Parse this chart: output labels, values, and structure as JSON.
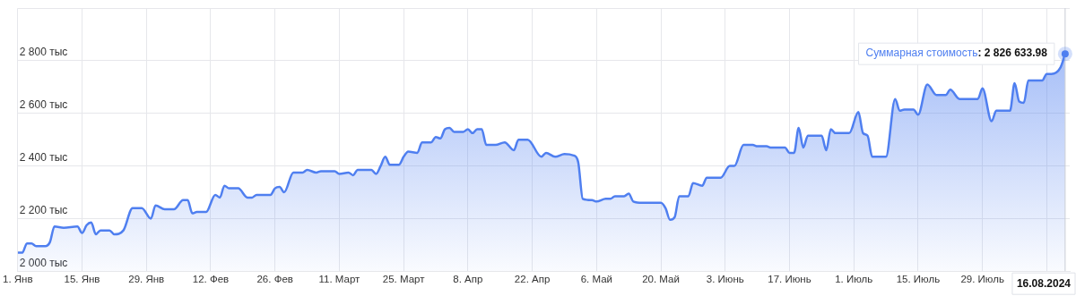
{
  "chart_data": {
    "type": "area",
    "x": [
      "2024-01-01",
      "2024-01-02",
      "2024-01-03",
      "2024-01-04",
      "2024-01-05",
      "2024-01-07",
      "2024-01-08",
      "2024-01-09",
      "2024-01-11",
      "2024-01-14",
      "2024-01-15",
      "2024-01-16",
      "2024-01-17",
      "2024-01-18",
      "2024-01-19",
      "2024-01-21",
      "2024-01-22",
      "2024-01-24",
      "2024-01-26",
      "2024-01-28",
      "2024-01-30",
      "2024-01-31",
      "2024-02-02",
      "2024-02-04",
      "2024-02-06",
      "2024-02-07",
      "2024-02-08",
      "2024-02-09",
      "2024-02-11",
      "2024-02-13",
      "2024-02-14",
      "2024-02-15",
      "2024-02-16",
      "2024-02-18",
      "2024-02-20",
      "2024-02-21",
      "2024-02-22",
      "2024-02-25",
      "2024-02-26",
      "2024-02-27",
      "2024-02-28",
      "2024-03-01",
      "2024-03-03",
      "2024-03-04",
      "2024-03-06",
      "2024-03-07",
      "2024-03-10",
      "2024-03-11",
      "2024-03-13",
      "2024-03-14",
      "2024-03-15",
      "2024-03-18",
      "2024-03-19",
      "2024-03-20",
      "2024-03-21",
      "2024-03-22",
      "2024-03-24",
      "2024-03-25",
      "2024-03-26",
      "2024-03-28",
      "2024-03-29",
      "2024-03-31",
      "2024-04-01",
      "2024-04-02",
      "2024-04-03",
      "2024-04-04",
      "2024-04-05",
      "2024-04-07",
      "2024-04-08",
      "2024-04-09",
      "2024-04-10",
      "2024-04-11",
      "2024-04-12",
      "2024-04-14",
      "2024-04-16",
      "2024-04-18",
      "2024-04-19",
      "2024-04-21",
      "2024-04-24",
      "2024-04-25",
      "2024-04-27",
      "2024-04-29",
      "2024-05-01",
      "2024-05-02",
      "2024-05-03",
      "2024-05-05",
      "2024-05-06",
      "2024-05-08",
      "2024-05-09",
      "2024-05-10",
      "2024-05-12",
      "2024-05-13",
      "2024-05-14",
      "2024-05-16",
      "2024-05-20",
      "2024-05-21",
      "2024-05-22",
      "2024-05-23",
      "2024-05-24",
      "2024-05-26",
      "2024-05-27",
      "2024-05-29",
      "2024-05-30",
      "2024-06-02",
      "2024-06-04",
      "2024-06-05",
      "2024-06-07",
      "2024-06-09",
      "2024-06-10",
      "2024-06-12",
      "2024-06-13",
      "2024-06-16",
      "2024-06-17",
      "2024-06-18",
      "2024-06-19",
      "2024-06-20",
      "2024-06-21",
      "2024-06-24",
      "2024-06-25",
      "2024-06-26",
      "2024-06-27",
      "2024-06-30",
      "2024-07-02",
      "2024-07-03",
      "2024-07-04",
      "2024-07-05",
      "2024-07-08",
      "2024-07-10",
      "2024-07-11",
      "2024-07-12",
      "2024-07-14",
      "2024-07-15",
      "2024-07-17",
      "2024-07-19",
      "2024-07-21",
      "2024-07-22",
      "2024-07-24",
      "2024-07-28",
      "2024-07-29",
      "2024-07-31",
      "2024-08-01",
      "2024-08-04",
      "2024-08-05",
      "2024-08-06",
      "2024-08-07",
      "2024-08-08",
      "2024-08-11",
      "2024-08-12",
      "2024-08-13",
      "2024-08-15",
      "2024-08-16"
    ],
    "series": [
      {
        "color": "#4f7ff0",
        "values": [
          2070,
          2070,
          2105,
          2105,
          2095,
          2095,
          2110,
          2170,
          2165,
          2170,
          2145,
          2175,
          2185,
          2140,
          2155,
          2155,
          2140,
          2155,
          2240,
          2240,
          2200,
          2250,
          2235,
          2235,
          2270,
          2270,
          2220,
          2225,
          2225,
          2290,
          2280,
          2325,
          2315,
          2315,
          2280,
          2280,
          2290,
          2290,
          2315,
          2320,
          2300,
          2375,
          2375,
          2385,
          2375,
          2380,
          2380,
          2370,
          2375,
          2365,
          2385,
          2385,
          2370,
          2400,
          2435,
          2405,
          2405,
          2435,
          2455,
          2450,
          2490,
          2490,
          2510,
          2505,
          2540,
          2545,
          2530,
          2530,
          2540,
          2525,
          2540,
          2540,
          2480,
          2480,
          2490,
          2460,
          2500,
          2500,
          2435,
          2450,
          2435,
          2445,
          2440,
          2415,
          2275,
          2270,
          2265,
          2275,
          2275,
          2285,
          2285,
          2295,
          2265,
          2260,
          2260,
          2240,
          2195,
          2205,
          2285,
          2285,
          2335,
          2325,
          2355,
          2355,
          2400,
          2400,
          2480,
          2480,
          2475,
          2475,
          2470,
          2470,
          2450,
          2450,
          2545,
          2470,
          2515,
          2515,
          2460,
          2540,
          2525,
          2525,
          2605,
          2525,
          2515,
          2435,
          2435,
          2655,
          2610,
          2615,
          2615,
          2595,
          2710,
          2670,
          2670,
          2690,
          2655,
          2655,
          2695,
          2570,
          2610,
          2610,
          2715,
          2645,
          2640,
          2725,
          2725,
          2750,
          2750,
          2775,
          2826.63398
        ]
      }
    ],
    "xlim": [
      "2024-01-01",
      "2024-08-17"
    ],
    "xticks": [
      {
        "value": "2024-01-01",
        "label": "1. Янв"
      },
      {
        "value": "2024-01-15",
        "label": "15. Янв"
      },
      {
        "value": "2024-01-29",
        "label": "29. Янв"
      },
      {
        "value": "2024-02-12",
        "label": "12. Фев"
      },
      {
        "value": "2024-02-26",
        "label": "26. Фев"
      },
      {
        "value": "2024-03-11",
        "label": "11. Март"
      },
      {
        "value": "2024-03-25",
        "label": "25. Март"
      },
      {
        "value": "2024-04-08",
        "label": "8. Апр"
      },
      {
        "value": "2024-04-22",
        "label": "22. Апр"
      },
      {
        "value": "2024-05-06",
        "label": "6. Май"
      },
      {
        "value": "2024-05-20",
        "label": "20. Май"
      },
      {
        "value": "2024-06-03",
        "label": "3. Июнь"
      },
      {
        "value": "2024-06-17",
        "label": "17. Июнь"
      },
      {
        "value": "2024-07-01",
        "label": "1. Июль"
      },
      {
        "value": "2024-07-15",
        "label": "15. Июль"
      },
      {
        "value": "2024-07-29",
        "label": "29. Июль"
      },
      {
        "value": "2024-08-12",
        "label": null
      }
    ],
    "ylim": [
      2000,
      3000
    ],
    "yticks": [
      {
        "value": 2000,
        "label": "2 000 тыс"
      },
      {
        "value": 2200,
        "label": "2 200 тыс"
      },
      {
        "value": 2400,
        "label": "2 400 тыс"
      },
      {
        "value": 2600,
        "label": "2 600 тыс"
      },
      {
        "value": 2800,
        "label": "2 800 тыс"
      },
      {
        "value": 3000,
        "label": null
      }
    ],
    "grid": true,
    "legend": false,
    "marker": "none",
    "line_style": "solid",
    "ref_lines": [
      {
        "axis": "x",
        "value": "2024-08-16",
        "label": "16.08.2024",
        "color": "#c8ccd4"
      }
    ],
    "annotations": [
      {
        "text": "Суммарная стоимость: 2 826 633.98",
        "x": "2024-08-16",
        "y": 2826.63398
      }
    ]
  }
}
